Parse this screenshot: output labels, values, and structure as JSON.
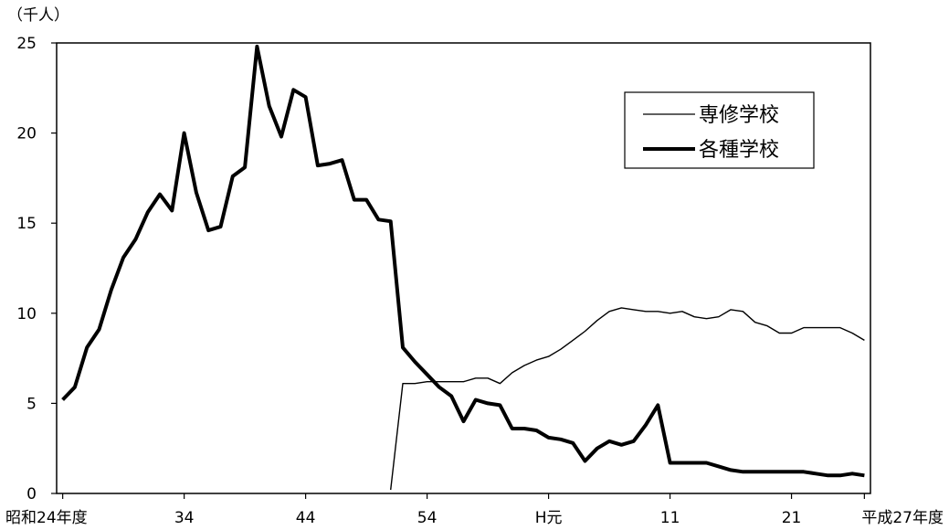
{
  "chart_data": {
    "type": "line",
    "unit_label": "（千人）",
    "xlabel": "",
    "ylabel": "",
    "ylim": [
      0,
      25
    ],
    "y_ticks": [
      0,
      5,
      10,
      15,
      20,
      25
    ],
    "x_ticks": [
      {
        "year": 1949,
        "label": "昭和24年度"
      },
      {
        "year": 1959,
        "label": "34"
      },
      {
        "year": 1969,
        "label": "44"
      },
      {
        "year": 1979,
        "label": "54"
      },
      {
        "year": 1989,
        "label": "H元"
      },
      {
        "year": 1999,
        "label": "11"
      },
      {
        "year": 2009,
        "label": "21"
      },
      {
        "year": 2015,
        "label": "平成27年度"
      }
    ],
    "legend": {
      "position": "top-right"
    },
    "grid": false,
    "series": [
      {
        "name": "専修学校",
        "style": "thin",
        "color": "#000000",
        "x": [
          1976,
          1977,
          1978,
          1979,
          1980,
          1981,
          1982,
          1983,
          1984,
          1985,
          1986,
          1987,
          1988,
          1989,
          1990,
          1991,
          1992,
          1993,
          1994,
          1995,
          1996,
          1997,
          1998,
          1999,
          2000,
          2001,
          2002,
          2003,
          2004,
          2005,
          2006,
          2007,
          2008,
          2009,
          2010,
          2011,
          2012,
          2013,
          2014,
          2015
        ],
        "y": [
          0.2,
          6.1,
          6.1,
          6.2,
          6.2,
          6.2,
          6.2,
          6.4,
          6.4,
          6.1,
          6.7,
          7.1,
          7.4,
          7.6,
          8.0,
          8.5,
          9.0,
          9.6,
          10.1,
          10.3,
          10.2,
          10.1,
          10.1,
          10.0,
          10.1,
          9.8,
          9.7,
          9.8,
          10.2,
          10.1,
          9.5,
          9.3,
          8.9,
          8.9,
          9.2,
          9.2,
          9.2,
          9.2,
          8.9,
          8.5
        ]
      },
      {
        "name": "各種学校",
        "style": "thick",
        "color": "#000000",
        "x": [
          1949,
          1950,
          1951,
          1952,
          1953,
          1954,
          1955,
          1956,
          1957,
          1958,
          1959,
          1960,
          1961,
          1962,
          1963,
          1964,
          1965,
          1966,
          1967,
          1968,
          1969,
          1970,
          1971,
          1972,
          1973,
          1974,
          1975,
          1976,
          1977,
          1978,
          1979,
          1980,
          1981,
          1982,
          1983,
          1984,
          1985,
          1986,
          1987,
          1988,
          1989,
          1990,
          1991,
          1992,
          1993,
          1994,
          1995,
          1996,
          1997,
          1998,
          1999,
          2000,
          2001,
          2002,
          2003,
          2004,
          2005,
          2006,
          2007,
          2008,
          2009,
          2010,
          2011,
          2012,
          2013,
          2014,
          2015
        ],
        "y": [
          5.2,
          5.9,
          8.1,
          9.1,
          11.3,
          13.1,
          14.1,
          15.6,
          16.6,
          15.7,
          20.0,
          16.7,
          14.6,
          14.8,
          17.6,
          18.1,
          24.8,
          21.5,
          19.8,
          22.4,
          22.0,
          18.2,
          18.3,
          18.5,
          16.3,
          16.3,
          15.2,
          15.1,
          8.1,
          7.3,
          6.6,
          5.9,
          5.4,
          4.0,
          5.2,
          5.0,
          4.9,
          3.6,
          3.6,
          3.5,
          3.1,
          3.0,
          2.8,
          1.8,
          2.5,
          2.9,
          2.7,
          2.9,
          3.8,
          4.9,
          1.7,
          1.7,
          1.7,
          1.7,
          1.5,
          1.3,
          1.2,
          1.2,
          1.2,
          1.2,
          1.2,
          1.2,
          1.1,
          1.0,
          1.0,
          1.1,
          1.0
        ]
      }
    ]
  }
}
